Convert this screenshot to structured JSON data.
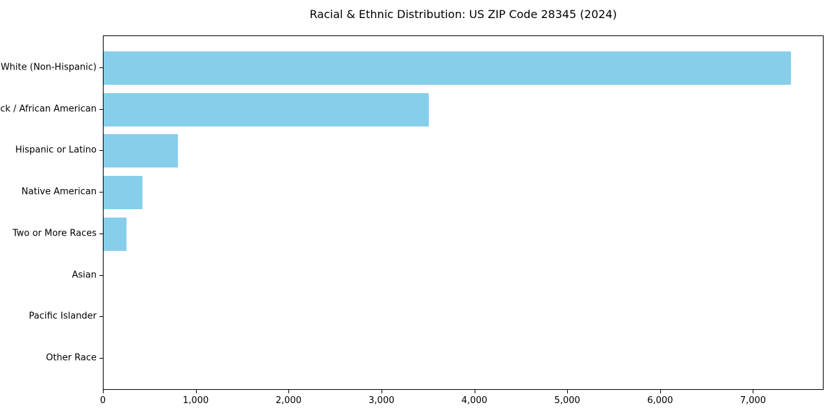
{
  "chart_data": {
    "type": "bar",
    "orientation": "horizontal",
    "title": "Racial & Ethnic Distribution: US ZIP Code 28345 (2024)",
    "categories": [
      "White (Non-Hispanic)",
      "Black / African American",
      "Hispanic or Latino",
      "Native American",
      "Two or More Races",
      "Asian",
      "Pacific Islander",
      "Other Race"
    ],
    "values": [
      7400,
      3500,
      800,
      420,
      250,
      0,
      0,
      0
    ],
    "xlabel": "",
    "ylabel": "",
    "xlim": [
      0,
      7760
    ],
    "xticks": {
      "values": [
        0,
        1000,
        2000,
        3000,
        4000,
        5000,
        6000,
        7000
      ],
      "labels": [
        "0",
        "1,000",
        "2,000",
        "3,000",
        "4,000",
        "5,000",
        "6,000",
        "7,000"
      ]
    },
    "bar_color": "#87CEEB",
    "text_color": "#000000",
    "frame_color": "#000000",
    "background": "#ffffff",
    "grid": false,
    "legend": false
  }
}
